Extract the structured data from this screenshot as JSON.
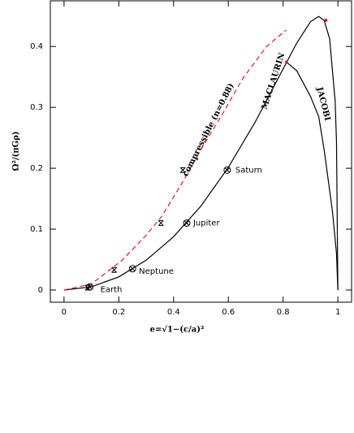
{
  "chart_data": {
    "type": "line",
    "xlabel": "e=√1−(c/a)²",
    "ylabel": "Ω²/(πGρ)",
    "xlim": [
      -0.05,
      1.05
    ],
    "ylim": [
      -0.02,
      0.475
    ],
    "xticks": [
      0,
      0.2,
      0.4,
      0.6,
      0.8,
      1
    ],
    "yticks": [
      0,
      0.1,
      0.2,
      0.3,
      0.4
    ],
    "series": [
      {
        "name": "MACLAURIN",
        "color": "#000000",
        "dashed": false,
        "x": [
          0,
          0.1,
          0.2,
          0.3,
          0.4,
          0.5,
          0.6,
          0.7,
          0.8,
          0.85,
          0.9,
          0.93,
          0.95,
          0.97,
          0.99,
          0.995,
          1
        ],
        "values": [
          0,
          0.0053,
          0.0216,
          0.049,
          0.0875,
          0.138,
          0.2014,
          0.2774,
          0.3632,
          0.4058,
          0.4406,
          0.4494,
          0.4427,
          0.4126,
          0.3103,
          0.2437,
          0
        ]
      },
      {
        "name": "JACOBI",
        "color": "#000000",
        "dashed": false,
        "x": [
          0.8127,
          0.85,
          0.9,
          0.93,
          0.95,
          0.98,
          0.995,
          1
        ],
        "values": [
          0.3742,
          0.36,
          0.318,
          0.285,
          0.23,
          0.13,
          0.06,
          0
        ]
      },
      {
        "name": "compressible (n=0.88)",
        "color": "#e41a1c",
        "dashed": true,
        "x": [
          0,
          0.1,
          0.21,
          0.3,
          0.357,
          0.43,
          0.504,
          0.58,
          0.652,
          0.74,
          0.811
        ],
        "values": [
          0,
          0.01,
          0.048,
          0.09,
          0.121,
          0.175,
          0.234,
          0.29,
          0.347,
          0.4,
          0.427
        ]
      }
    ],
    "planets": [
      {
        "name": "Earth",
        "x": 0.094,
        "y": 0.005
      },
      {
        "name": "Neptune",
        "x": 0.25,
        "y": 0.035
      },
      {
        "name": "Jupiter",
        "x": 0.448,
        "y": 0.11
      },
      {
        "name": "Saturn",
        "x": 0.596,
        "y": 0.197
      }
    ],
    "markers": {
      "x": [
        0.086,
        0.183,
        0.354,
        0.434
      ],
      "values": [
        0.004,
        0.033,
        0.11,
        0.197
      ]
    },
    "highlights": {
      "color": "#e41a1c",
      "x": [
        0.8127,
        0.956
      ],
      "values": [
        0.3742,
        0.443
      ]
    }
  }
}
